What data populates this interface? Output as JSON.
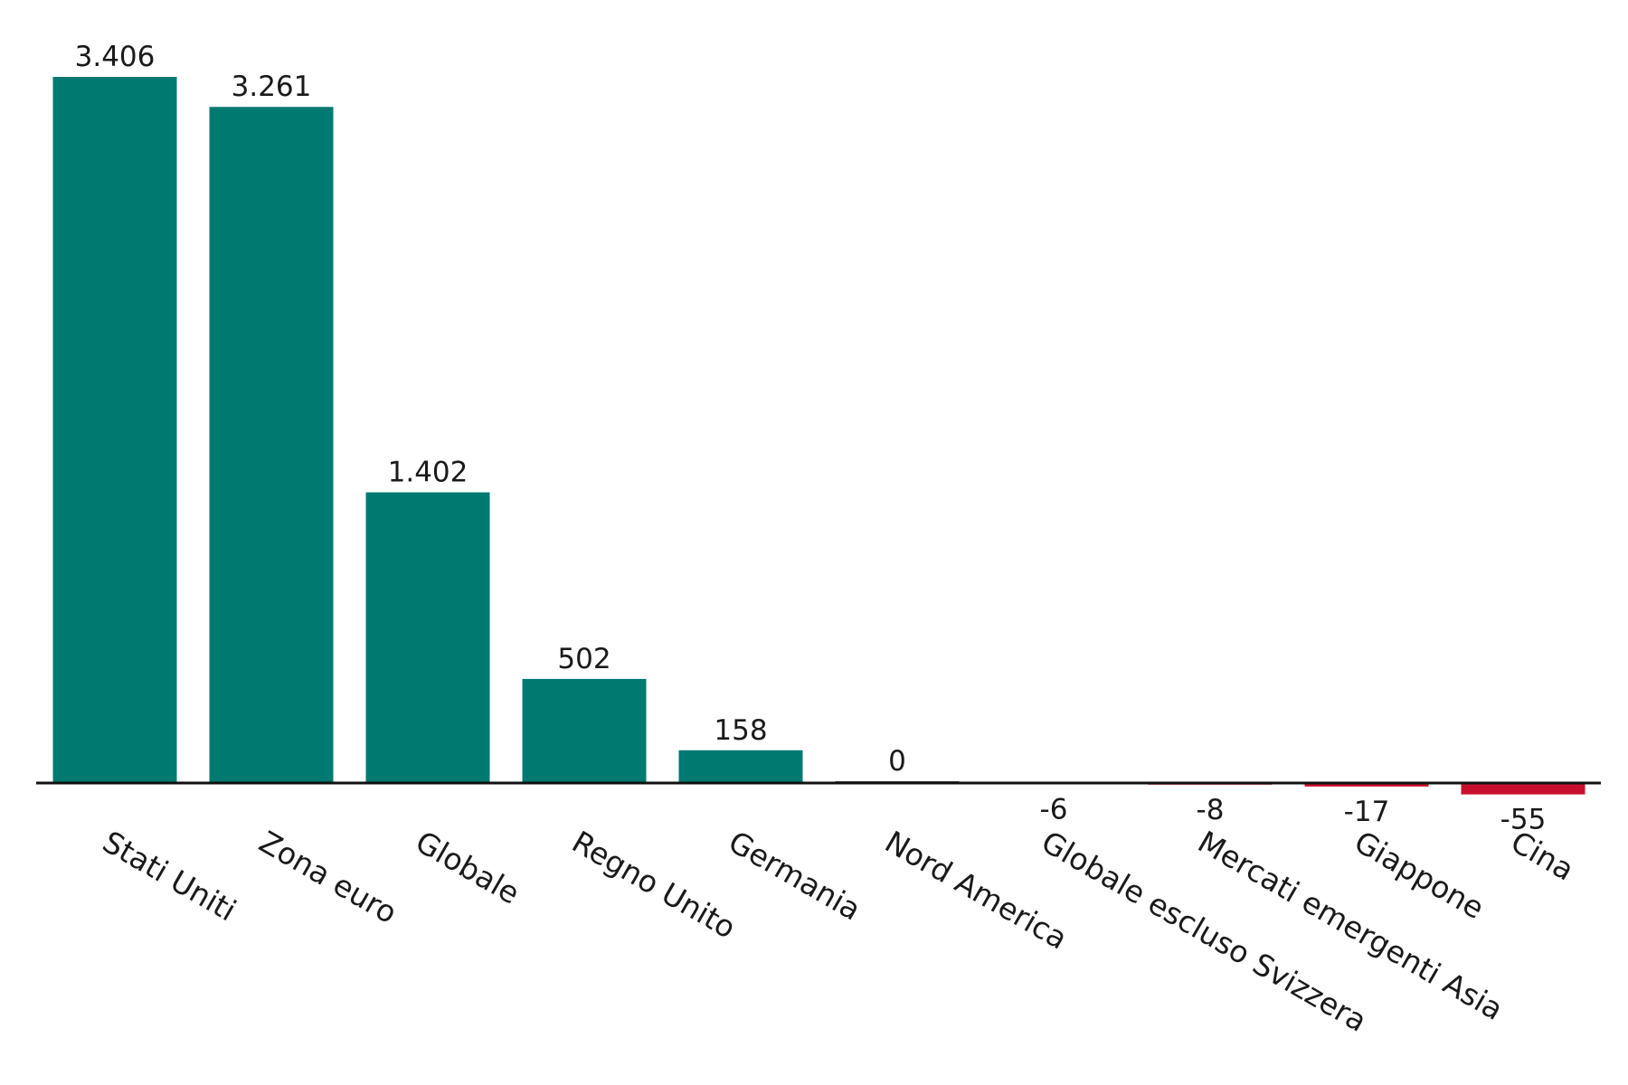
{
  "chart_data": {
    "type": "bar",
    "title": "",
    "xlabel": "",
    "ylabel": "",
    "categories": [
      "Stati Uniti",
      "Zona euro",
      "Globale",
      "Regno Unito",
      "Germania",
      "Nord America",
      "Globale escluso Svizzera",
      "Mercati emergenti Asia",
      "Giappone",
      "Cina"
    ],
    "values": [
      3406,
      3261,
      1402,
      502,
      158,
      0,
      -6,
      -8,
      -17,
      -55
    ],
    "value_labels": [
      "3.406",
      "3.261",
      "1.402",
      "502",
      "158",
      "0",
      "-6",
      "-8",
      "-17",
      "-55"
    ],
    "ylim": [
      -55,
      3406
    ],
    "grid": false,
    "colors": {
      "positive": "#007970",
      "negative": "#c8102e",
      "zero": "#555555",
      "axis": "#111111"
    }
  }
}
